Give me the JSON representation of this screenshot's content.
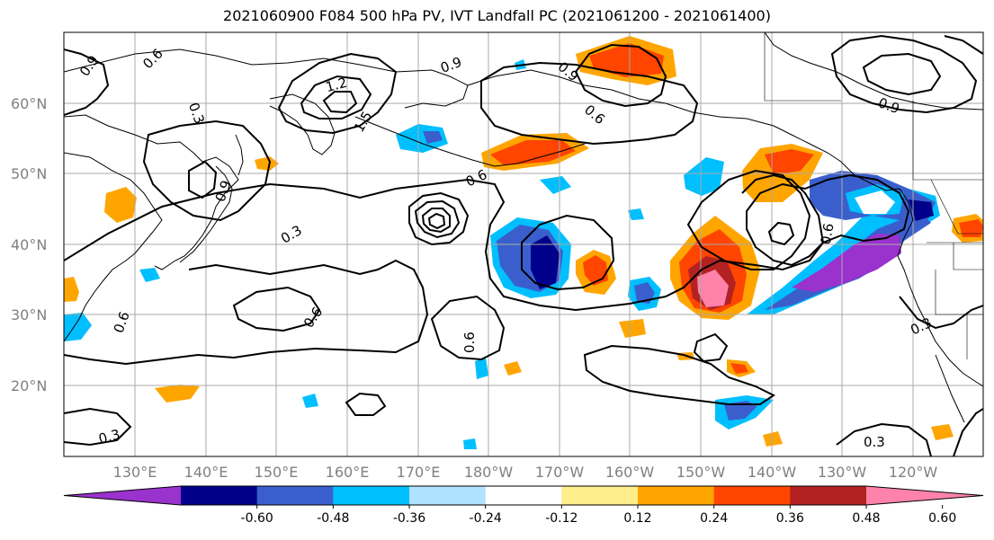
{
  "title": "2021060900 F084 500 hPa PV, IVT Landfall PC (2021061200 - 2021061400)",
  "lat_labels": [
    "60°N",
    "50°N",
    "40°N",
    "30°N",
    "20°N"
  ],
  "lon_labels": [
    "130°E",
    "140°E",
    "150°E",
    "160°E",
    "170°E",
    "180°W",
    "170°W",
    "160°W",
    "150°W",
    "140°W",
    "130°W",
    "120°W"
  ],
  "colorbar": {
    "ticks": [
      "-0.60",
      "-0.48",
      "-0.36",
      "-0.24",
      "-0.12",
      "0.12",
      "0.24",
      "0.36",
      "0.48",
      "0.60"
    ],
    "colors": [
      "#9a32cd",
      "#00008b",
      "#3a5fcd",
      "#00bfff",
      "#b0e2ff",
      "#ffffff",
      "#ffec8b",
      "#ffa500",
      "#ff4500",
      "#b22222",
      "#ff82ab"
    ]
  },
  "contour_labels": [
    "0.9",
    "0.6",
    "0.3",
    "1.2",
    "1.5",
    "0.9",
    "0.6",
    "0.6",
    "0.9",
    "0.3",
    "0.6",
    "0.6",
    "0.6",
    "0.9",
    "0.6",
    "0.9",
    "0.3",
    "0.3",
    "0.3"
  ]
}
